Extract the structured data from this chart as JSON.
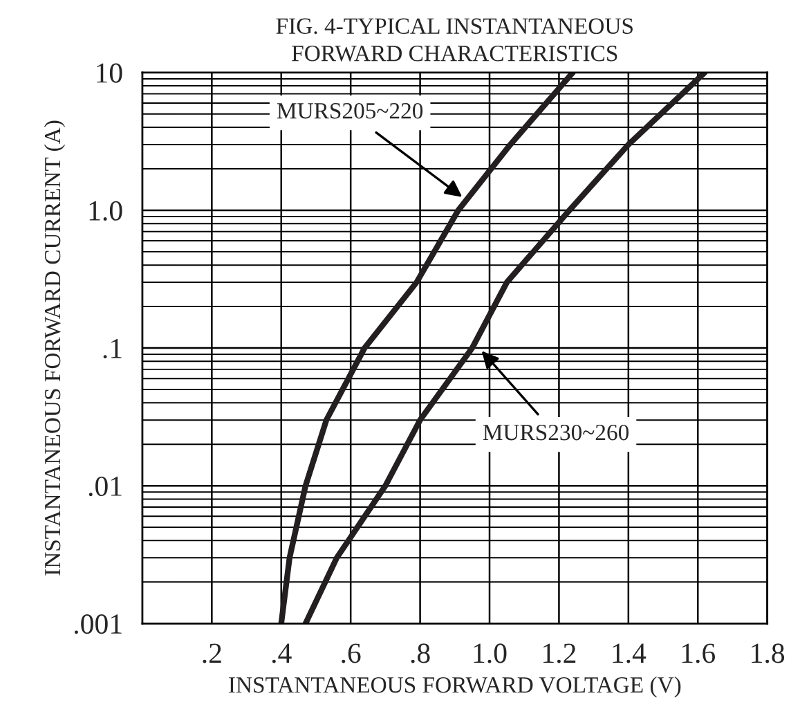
{
  "chart_data": {
    "type": "line",
    "title": "FIG. 4-TYPICAL INSTANTANEOUS\nFORWARD CHARACTERISTICS",
    "xlabel": "INSTANTANEOUS FORWARD VOLTAGE (V)",
    "ylabel": "INSTANTANEOUS FORWARD CURRENT (A)",
    "log": "y",
    "grid": true,
    "legend": false,
    "marker": "none",
    "line_style": "solid",
    "xlim": [
      0,
      1.8
    ],
    "ylim": [
      0.001,
      10
    ],
    "xticks": [
      {
        "value": 0.2,
        "label": ".2"
      },
      {
        "value": 0.4,
        "label": ".4"
      },
      {
        "value": 0.6,
        "label": ".6"
      },
      {
        "value": 0.8,
        "label": ".8"
      },
      {
        "value": 1.0,
        "label": "1.0"
      },
      {
        "value": 1.2,
        "label": "1.2"
      },
      {
        "value": 1.4,
        "label": "1.4"
      },
      {
        "value": 1.6,
        "label": "1.6"
      },
      {
        "value": 1.8,
        "label": "1.8"
      }
    ],
    "yticks": [
      {
        "value": 0.001,
        "label": ".001"
      },
      {
        "value": 0.01,
        "label": ".01"
      },
      {
        "value": 0.1,
        "label": ".1"
      },
      {
        "value": 1,
        "label": "1.0"
      },
      {
        "value": 10,
        "label": "10"
      }
    ],
    "series": [
      {
        "color": "#231f20",
        "x": [
          0.4,
          0.424,
          0.47,
          0.53,
          0.64,
          0.79,
          0.91,
          1.06,
          1.24
        ],
        "values": [
          0.001,
          0.003,
          0.01,
          0.03,
          0.1,
          0.3,
          1.0,
          3.0,
          10
        ]
      },
      {
        "color": "#231f20",
        "x": [
          0.47,
          0.56,
          0.7,
          0.8,
          0.95,
          1.05,
          1.23,
          1.4,
          1.62
        ],
        "values": [
          0.001,
          0.003,
          0.01,
          0.03,
          0.1,
          0.3,
          1.0,
          3.0,
          10
        ]
      }
    ],
    "annotations": [
      {
        "text": "MURS205~220",
        "x": 0.93,
        "y": 1.2
      },
      {
        "text": "MURS230~260",
        "x": 0.97,
        "y": 0.1
      }
    ]
  }
}
